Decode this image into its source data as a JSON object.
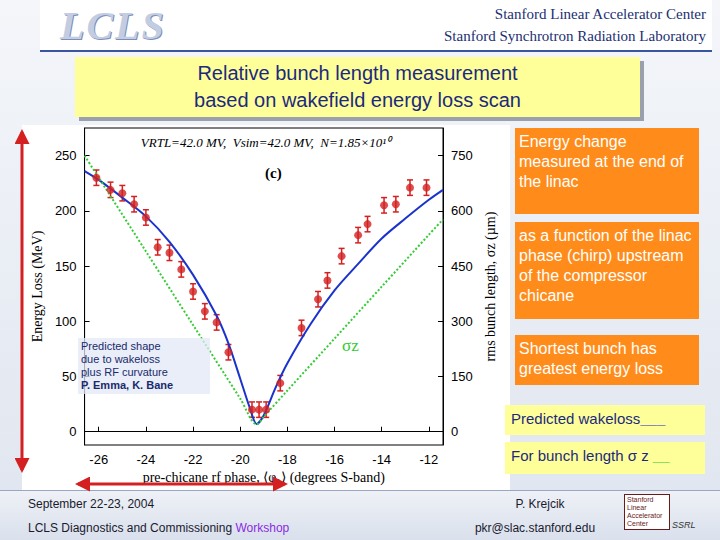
{
  "header": {
    "logo": "LCLS",
    "org_lines": [
      "Stanford Linear Accelerator Center",
      "Stanford Synchrotron Radiation Laboratory"
    ]
  },
  "title": [
    "Relative bunch length measurement",
    "based on wakefield energy loss scan"
  ],
  "chart_data": {
    "type": "scatter",
    "title": "VRTL=42.0 MV,  Vsim=42.0 MV,  N=1.85×10¹⁰",
    "x_label": "pre-chicane rf phase, ⟨φ₁⟩ (degrees S-band)",
    "y_label": "Energy Loss (MeV)",
    "y2_label": "rms bunch length, σz (µm)",
    "xlim": [
      -26.6,
      -11.4
    ],
    "xticks": [
      -26,
      -24,
      -22,
      -20,
      -18,
      -16,
      -14,
      -12
    ],
    "ylim": [
      -12,
      275
    ],
    "yticks": [
      0,
      50,
      100,
      150,
      200,
      250
    ],
    "y2lim": [
      -36,
      825
    ],
    "y2ticks": [
      0,
      150,
      300,
      450,
      600,
      750
    ],
    "grid": false,
    "annotations": [
      {
        "text": "(c)"
      },
      {
        "text": "σz",
        "color": "#33cc33"
      }
    ],
    "series": [
      {
        "type": "scatter",
        "color": "#d42020",
        "marker": "circle",
        "x": [
          -26.1,
          -25.5,
          -25.0,
          -24.5,
          -24.0,
          -23.5,
          -23.0,
          -22.5,
          -22.0,
          -21.5,
          -21.0,
          -20.5,
          -19.5,
          -19.2,
          -18.9,
          -18.3,
          -17.4,
          -16.7,
          -16.3,
          -15.7,
          -15.0,
          -14.6,
          -13.9,
          -13.4,
          -12.8,
          -12.1
        ],
        "values": [
          230,
          219,
          216,
          206,
          194,
          167,
          162,
          147,
          127,
          109,
          99,
          72,
          20,
          20,
          20,
          44,
          94,
          120,
          137,
          159,
          178,
          188,
          205,
          206,
          221,
          221
        ],
        "errors": [
          7,
          7,
          7,
          7,
          7,
          7,
          7,
          7,
          7,
          7,
          7,
          7,
          7,
          7,
          7,
          7,
          7,
          7,
          7,
          7,
          7,
          7,
          7,
          7,
          7,
          7
        ]
      },
      {
        "name": "Predicted wakeloss___",
        "type": "line",
        "color": "#1a33cc",
        "line_style": "solid",
        "x": [
          -26.6,
          -26,
          -25,
          -24,
          -23,
          -22,
          -21,
          -20.5,
          -20,
          -19.6,
          -19.3,
          -19,
          -18.5,
          -18,
          -17,
          -16,
          -15,
          -14,
          -13,
          -12,
          -11.4
        ],
        "values": [
          236,
          228,
          212,
          195,
          172,
          142,
          105,
          80,
          48,
          22,
          7,
          15,
          40,
          62,
          98,
          128,
          152,
          175,
          193,
          210,
          219
        ]
      },
      {
        "name": "For bunch length σ z __",
        "type": "line",
        "axis": "y2",
        "color": "#33cc33",
        "line_style": "dotted",
        "x": [
          -26.6,
          -26,
          -24,
          -22,
          -20,
          -19.3,
          -19,
          -18,
          -16,
          -14,
          -12,
          -11.4
        ],
        "values": [
          750,
          690,
          490,
          290,
          90,
          20,
          41,
          112,
          253,
          394,
          535,
          577
        ]
      }
    ]
  },
  "plot_note": {
    "lines": [
      "Predicted shape",
      "due to wakeloss",
      "plus RF curvature"
    ],
    "author": "P. Emma, K. Bane"
  },
  "callouts": [
    "Energy change measured at the end of the linac",
    "as a function of the linac phase (chirp) upstream of the compressor chicane",
    "Shortest bunch has greatest energy loss"
  ],
  "footer": {
    "date": "September 22-23, 2004",
    "workshop": {
      "text": "LCLS Diagnostics and Commissioning",
      "highlight": "Workshop"
    },
    "author": "P. Krejcik",
    "email": "pkr@slac.stanford.edu",
    "logo_lines": [
      "Stanford",
      "Linear",
      "Accelerator",
      "Center"
    ],
    "logo_mark": "SSRL"
  }
}
